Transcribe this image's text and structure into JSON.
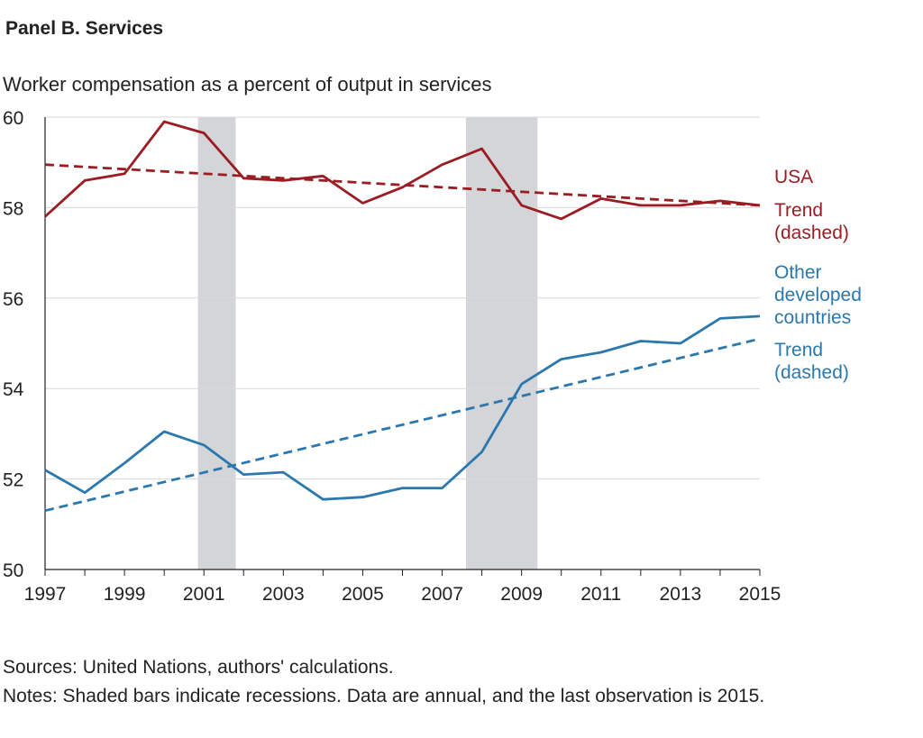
{
  "panel_title": "Panel B. Services",
  "subtitle": "Worker compensation as a percent of output in services",
  "sources": "Sources: United Nations, authors' calculations.",
  "notes": "Notes: Shaded bars indicate recessions. Data are annual, and the last observation is 2015.",
  "labels": {
    "usa": "USA",
    "usa_trend_1": "Trend",
    "usa_trend_2": "(dashed)",
    "other_1": "Other",
    "other_2": "developed",
    "other_3": "countries",
    "other_trend_1": "Trend",
    "other_trend_2": "(dashed)"
  },
  "colors": {
    "usa": "#9b1c22",
    "other": "#2a78ad",
    "recession": "#d3d5d8",
    "grid": "#d9d9d9"
  },
  "chart_data": {
    "type": "line",
    "title": "Panel B. Services",
    "subtitle": "Worker compensation as a percent of output in services",
    "x": [
      1997,
      1998,
      1999,
      2000,
      2001,
      2002,
      2003,
      2004,
      2005,
      2006,
      2007,
      2008,
      2009,
      2010,
      2011,
      2012,
      2013,
      2014,
      2015
    ],
    "xlim": [
      1997,
      2015
    ],
    "ylim": [
      50,
      60
    ],
    "x_ticks": [
      1997,
      1999,
      2001,
      2003,
      2005,
      2007,
      2009,
      2011,
      2013,
      2015
    ],
    "y_ticks": [
      50,
      52,
      54,
      56,
      58,
      60
    ],
    "grid": "horizontal",
    "recessions": [
      [
        2000.85,
        2001.8
      ],
      [
        2007.6,
        2009.4
      ]
    ],
    "series": [
      {
        "name": "USA",
        "color": "#9b1c22",
        "dashed": false,
        "values": [
          57.8,
          58.6,
          58.75,
          59.9,
          59.65,
          58.65,
          58.6,
          58.7,
          58.1,
          58.45,
          58.95,
          59.3,
          58.05,
          57.75,
          58.2,
          58.05,
          58.05,
          58.15,
          58.05
        ]
      },
      {
        "name": "Trend",
        "color": "#9b1c22",
        "dashed": true,
        "x": [
          1997,
          2015
        ],
        "values": [
          58.95,
          58.05
        ]
      },
      {
        "name": "Other developed countries",
        "color": "#2a78ad",
        "dashed": false,
        "values": [
          52.2,
          51.7,
          52.35,
          53.05,
          52.75,
          52.1,
          52.15,
          51.55,
          51.6,
          51.8,
          51.8,
          52.6,
          54.1,
          54.65,
          54.8,
          55.05,
          55.0,
          55.55,
          55.6
        ]
      },
      {
        "name": "Trend",
        "color": "#2a78ad",
        "dashed": true,
        "x": [
          1997,
          2015
        ],
        "values": [
          51.3,
          55.1
        ]
      }
    ]
  }
}
